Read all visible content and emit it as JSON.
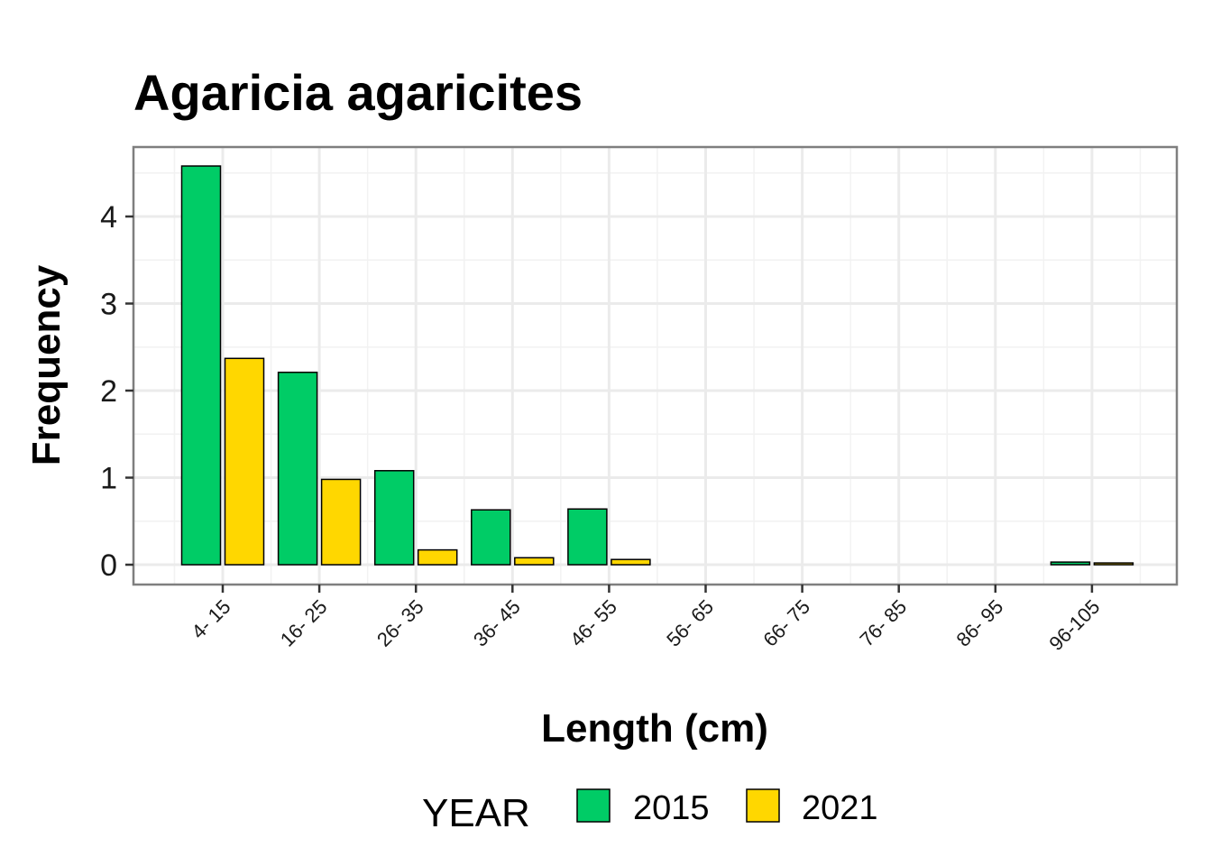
{
  "chart_data": {
    "type": "bar",
    "title": "Agaricia agaricites",
    "xlabel": "Length (cm)",
    "ylabel": "Frequency",
    "categories": [
      "4- 15",
      "16- 25",
      "26- 35",
      "36- 45",
      "46- 55",
      "56- 65",
      "66- 75",
      "76- 85",
      "86- 95",
      "96-105"
    ],
    "series": [
      {
        "name": "2015",
        "color": "#00CC66",
        "values": [
          4.58,
          2.21,
          1.08,
          0.63,
          0.64,
          0,
          0,
          0,
          0,
          0.03
        ]
      },
      {
        "name": "2021",
        "color": "#FFD700",
        "values": [
          2.37,
          0.98,
          0.17,
          0.08,
          0.06,
          0,
          0,
          0,
          0,
          0.02
        ]
      }
    ],
    "ylim": [
      -0.2,
      4.8
    ],
    "yticks": [
      0,
      1,
      2,
      3,
      4
    ],
    "grid": true,
    "legend": {
      "title": "YEAR",
      "placement": "bottom"
    }
  }
}
